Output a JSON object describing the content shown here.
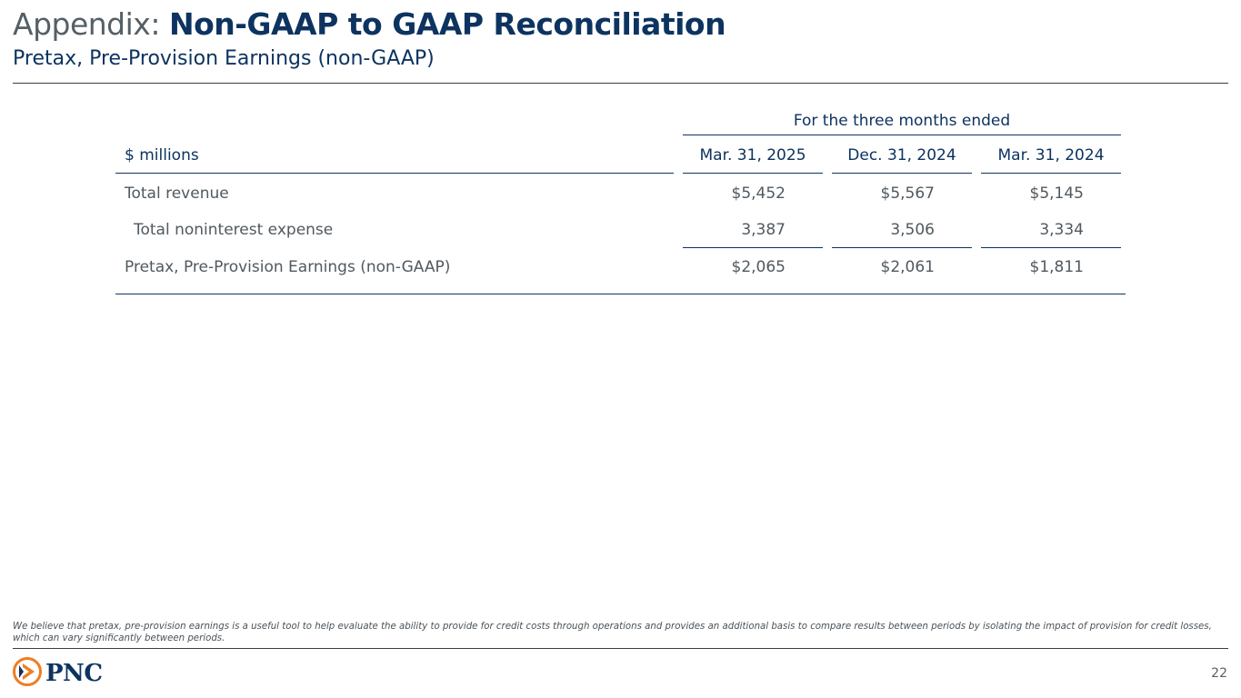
{
  "header": {
    "title_prefix": "Appendix:",
    "title_main": "Non-GAAP to GAAP Reconciliation",
    "subtitle": "Pretax, Pre-Provision Earnings (non-GAAP)"
  },
  "table": {
    "period_header": "For the three months ended",
    "unit_label": "$ millions",
    "columns": [
      "Mar. 31, 2025",
      "Dec. 31, 2024",
      "Mar. 31, 2024"
    ],
    "rows": [
      {
        "label": "Total revenue",
        "values": [
          "$5,452",
          "$5,567",
          "$5,145"
        ]
      },
      {
        "label": "Total noninterest expense",
        "values": [
          "3,387",
          "3,506",
          "3,334"
        ]
      },
      {
        "label": "Pretax, Pre-Provision Earnings (non-GAAP)",
        "values": [
          "$2,065",
          "$2,061",
          "$1,811"
        ]
      }
    ]
  },
  "footer": {
    "footnote": "We believe that pretax, pre-provision earnings is a useful tool to help evaluate the ability to provide for credit costs through operations and provides an additional basis to compare results between periods by isolating the impact of provision for credit losses, which can vary significantly between periods.",
    "logo_text": "PNC",
    "page_number": "22"
  },
  "colors": {
    "navy": "#0d3360",
    "orange": "#ef7d22",
    "gray_text": "#50595f"
  }
}
